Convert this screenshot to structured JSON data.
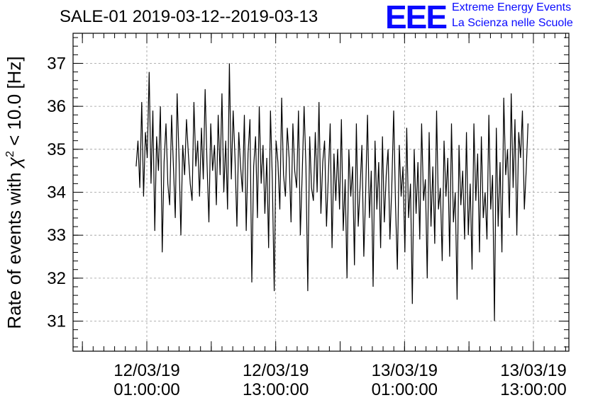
{
  "chart_data": {
    "type": "line",
    "title": "SALE-01 2019-03-12--2019-03-13",
    "ylabel_prefix": "Rate of events with ",
    "ylabel_chi": "χ",
    "ylabel_sup": "2",
    "ylabel_suffix": " < 10.0 [Hz]",
    "xlabel": "",
    "ylim": [
      30.3,
      37.7
    ],
    "yticks": [
      "31",
      "32",
      "33",
      "34",
      "35",
      "36",
      "37"
    ],
    "xtick_labels": [
      {
        "date": "12/03/19",
        "time": "01:00:00"
      },
      {
        "date": "12/03/19",
        "time": "13:00:00"
      },
      {
        "date": "13/03/19",
        "time": "01:00:00"
      },
      {
        "date": "13/03/19",
        "time": "13:00:00"
      }
    ],
    "grid": true,
    "line_color": "#000000",
    "series": [
      {
        "x_start": "2019-03-12 00:00:00",
        "x_end": "2019-03-13 12:30:00",
        "values": [
          34.6,
          35.2,
          34.1,
          36.1,
          33.9,
          35.4,
          34.8,
          36.8,
          34.2,
          35.9,
          33.1,
          35.3,
          34.5,
          36.0,
          32.6,
          34.7,
          35.6,
          34.2,
          33.7,
          35.8,
          34.6,
          33.4,
          36.3,
          34.8,
          33.0,
          35.1,
          34.4,
          35.7,
          34.9,
          34.2,
          33.8,
          36.1,
          34.6,
          35.2,
          33.9,
          35.5,
          34.3,
          36.4,
          34.7,
          33.3,
          35.6,
          34.5,
          35.1,
          33.7,
          35.8,
          34.4,
          36.3,
          34.0,
          35.2,
          33.6,
          37.0,
          34.3,
          35.9,
          34.8,
          33.2,
          35.4,
          34.6,
          34.0,
          35.8,
          33.1,
          34.9,
          35.7,
          31.9,
          34.6,
          35.3,
          33.4,
          36.0,
          34.2,
          35.1,
          33.5,
          34.8,
          32.7,
          35.9,
          34.3,
          31.7,
          35.2,
          34.7,
          33.6,
          36.2,
          34.4,
          33.9,
          35.5,
          34.8,
          33.3,
          35.6,
          34.5,
          34.1,
          35.9,
          33.0,
          34.4,
          36.0,
          34.6,
          31.7,
          35.3,
          34.1,
          33.8,
          35.4,
          34.0,
          36.1,
          33.5,
          34.7,
          35.2,
          33.2,
          34.4,
          35.6,
          32.7,
          34.9,
          33.8,
          35.0,
          33.6,
          35.7,
          33.1,
          34.3,
          32.0,
          35.0,
          33.9,
          34.6,
          32.3,
          35.6,
          33.2,
          34.1,
          35.1,
          32.5,
          34.0,
          35.8,
          33.4,
          34.5,
          31.8,
          35.2,
          33.6,
          34.7,
          32.7,
          35.3,
          33.3,
          34.4,
          35.0,
          32.9,
          34.1,
          35.9,
          33.7,
          32.2,
          35.1,
          33.9,
          34.6,
          32.6,
          35.5,
          33.4,
          34.2,
          31.4,
          35.0,
          33.5,
          34.7,
          32.9,
          35.6,
          33.8,
          34.3,
          32.0,
          35.4,
          33.2,
          34.6,
          32.8,
          35.9,
          33.6,
          34.1,
          32.4,
          35.2,
          33.9,
          34.8,
          32.5,
          35.6,
          33.3,
          34.0,
          31.5,
          35.1,
          33.7,
          34.5,
          32.9,
          35.4,
          33.0,
          34.2,
          32.2,
          35.6,
          33.8,
          34.9,
          32.6,
          35.3,
          33.4,
          34.0,
          32.9,
          35.8,
          33.6,
          34.4,
          31.0,
          35.5,
          33.2,
          34.7,
          32.6,
          36.2,
          34.4,
          35.0,
          33.4,
          36.3,
          34.1,
          35.7,
          33.0,
          35.4,
          34.8,
          35.9,
          33.6,
          34.5,
          35.6
        ]
      }
    ]
  },
  "logo": {
    "letters": "EEE",
    "line1": "Extreme Energy Events",
    "line2": "La Scienza nelle Scuole"
  }
}
